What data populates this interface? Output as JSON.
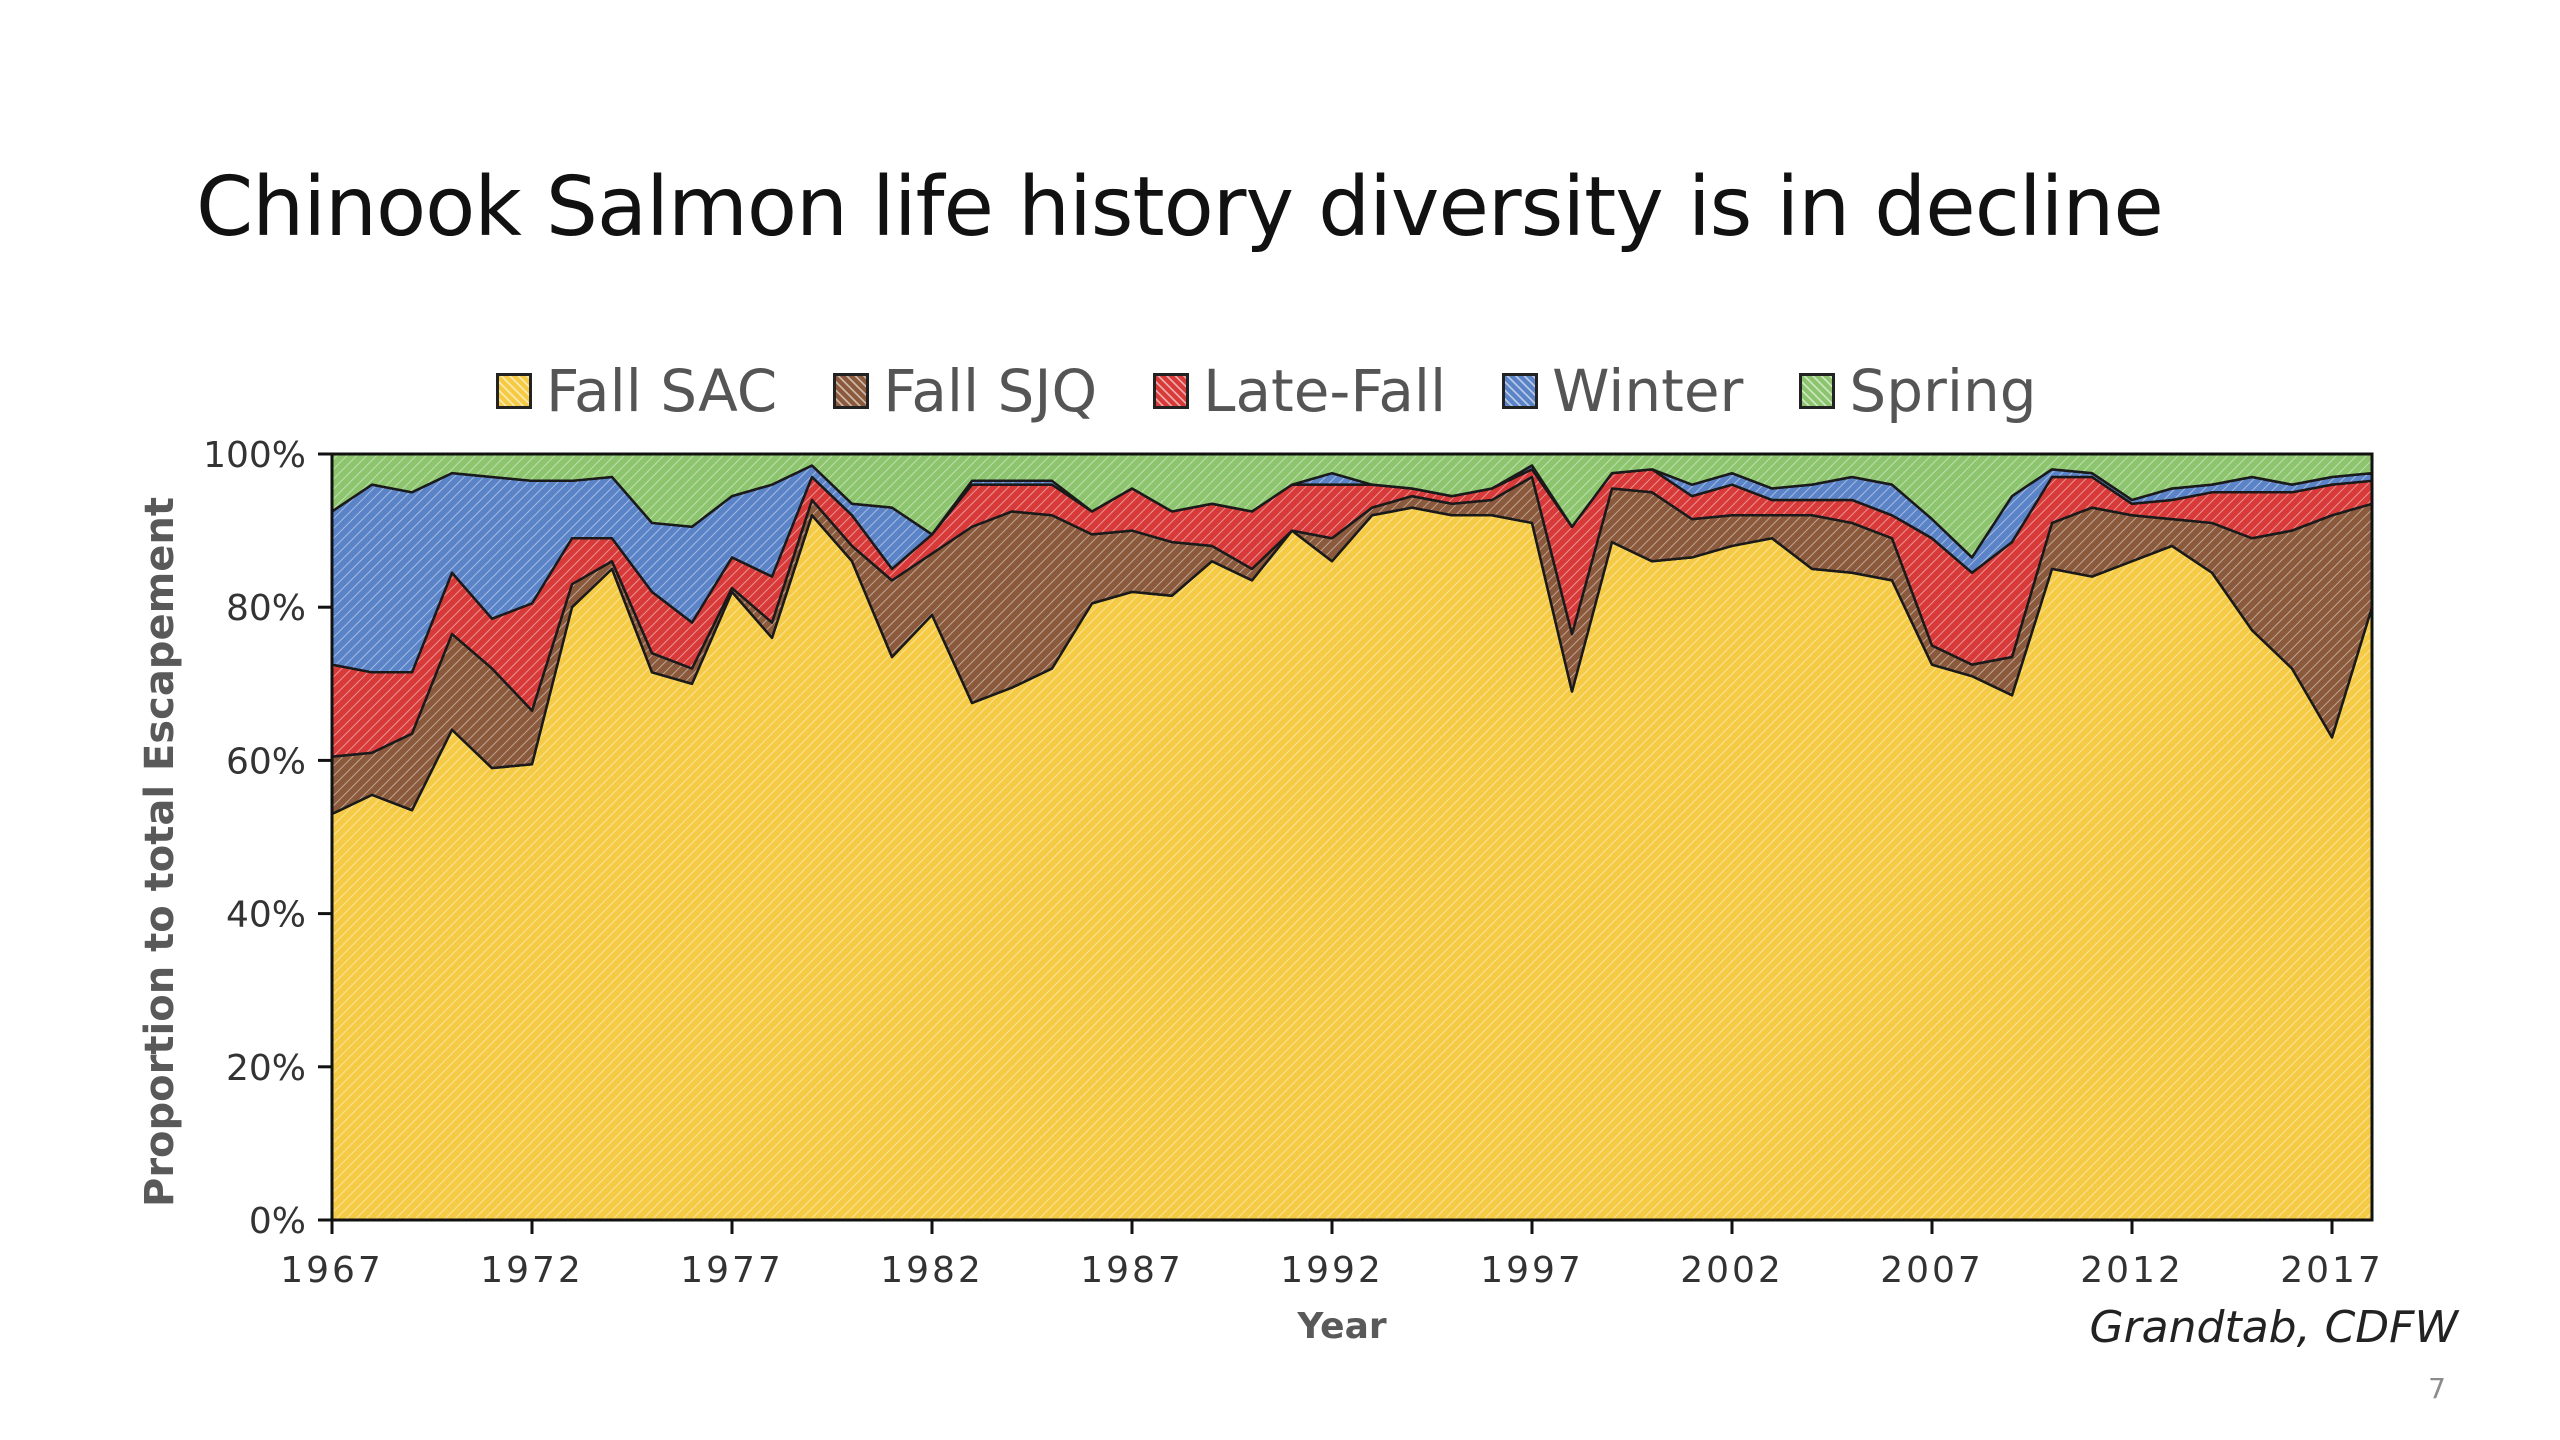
{
  "slide": {
    "title": "Chinook Salmon life history diversity is in decline",
    "source_note": "Grandtab, CDFW",
    "page_number": "7"
  },
  "chart_data": {
    "type": "area",
    "stacked": true,
    "normalized": true,
    "title": "",
    "xlabel": "Year",
    "ylabel": "Proportion to total Escapement",
    "x": [
      1967,
      1968,
      1969,
      1970,
      1971,
      1972,
      1973,
      1974,
      1975,
      1976,
      1977,
      1978,
      1979,
      1980,
      1981,
      1982,
      1983,
      1984,
      1985,
      1986,
      1987,
      1988,
      1989,
      1990,
      1991,
      1992,
      1993,
      1994,
      1995,
      1996,
      1997,
      1998,
      1999,
      2000,
      2001,
      2002,
      2003,
      2004,
      2005,
      2006,
      2007,
      2008,
      2009,
      2010,
      2011,
      2012,
      2013,
      2014,
      2015,
      2016,
      2017,
      2018
    ],
    "xticks": [
      1967,
      1972,
      1977,
      1982,
      1987,
      1992,
      1997,
      2002,
      2007,
      2012,
      2017
    ],
    "yticks": [
      "0%",
      "20%",
      "40%",
      "60%",
      "80%",
      "100%"
    ],
    "ylim": [
      0,
      100
    ],
    "legend_position": "top",
    "series": [
      {
        "name": "Fall SAC",
        "color": "#F5CB45",
        "values": [
          53,
          55.5,
          53.5,
          64,
          59,
          59.5,
          80,
          85,
          71.5,
          70,
          82,
          76,
          92,
          86,
          73.5,
          79,
          67.5,
          69.5,
          72,
          80.5,
          82,
          81.5,
          86,
          83.5,
          90,
          86,
          92,
          93,
          92,
          92,
          91,
          69,
          88.5,
          86,
          86.5,
          88,
          89,
          85,
          84.5,
          83.5,
          72.5,
          71,
          68.5,
          85,
          84,
          86,
          88,
          84.5,
          77,
          72,
          63,
          80
        ]
      },
      {
        "name": "Fall SJQ",
        "color": "#8B5A3C",
        "values": [
          7.5,
          5.5,
          10,
          12.5,
          13,
          7,
          3,
          1,
          2.5,
          2,
          0.5,
          2,
          2,
          2,
          10,
          8,
          23,
          23,
          20,
          9,
          8,
          7,
          2,
          1.5,
          0,
          3,
          1,
          1.5,
          1.5,
          2,
          6,
          7.5,
          7,
          9,
          5,
          4,
          3,
          7,
          6.5,
          5.5,
          2.5,
          1.5,
          5,
          6,
          9,
          6,
          3.5,
          6.5,
          12,
          18,
          29,
          13.5
        ]
      },
      {
        "name": "Late-Fall",
        "color": "#D83A3A",
        "values": [
          12,
          10.5,
          8,
          8,
          6.5,
          14,
          6,
          3,
          8,
          6,
          4,
          6,
          3,
          4,
          1.5,
          2.5,
          5.5,
          3.5,
          4,
          3,
          5.5,
          4,
          5.5,
          7.5,
          6,
          7,
          3,
          1,
          1,
          1.5,
          1,
          14,
          2,
          3,
          3,
          4,
          2,
          2,
          3,
          3,
          14,
          12,
          15,
          6,
          4,
          1.5,
          2.5,
          4,
          6,
          5,
          4,
          3
        ]
      },
      {
        "name": "Winter",
        "color": "#5B84C8",
        "values": [
          20,
          24.5,
          23.5,
          13,
          18.5,
          16,
          7.5,
          8,
          9,
          12.5,
          8,
          12,
          1.5,
          1.5,
          8,
          0,
          0.5,
          0.5,
          0.5,
          0,
          0,
          0,
          0,
          0,
          0,
          1.5,
          0,
          0,
          0,
          0,
          0.5,
          0,
          0,
          0,
          1.5,
          1.5,
          1.5,
          2,
          3,
          4,
          2.5,
          2,
          6,
          1,
          0.5,
          0.5,
          1.5,
          1,
          2,
          1,
          1,
          1
        ]
      },
      {
        "name": "Spring",
        "color": "#8CC56E",
        "values": [
          7.5,
          4,
          5,
          2.5,
          3,
          3.5,
          3.5,
          3,
          9,
          9.5,
          5.5,
          4,
          1.5,
          6.5,
          7,
          10.5,
          3.5,
          3.5,
          3.5,
          7.5,
          4.5,
          7.5,
          6.5,
          7.5,
          4,
          2.5,
          4,
          4.5,
          5.5,
          4.5,
          1.5,
          9.5,
          2.5,
          2,
          4,
          2.5,
          4.5,
          4,
          3,
          4,
          8.5,
          13.5,
          5.5,
          2,
          2.5,
          6,
          4.5,
          4,
          3,
          4,
          3,
          2.5
        ]
      }
    ]
  }
}
